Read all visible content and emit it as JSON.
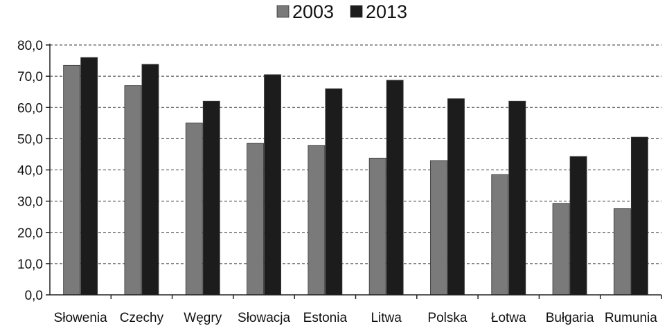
{
  "chart_data": {
    "type": "bar",
    "categories": [
      "Słowenia",
      "Czechy",
      "Węgry",
      "Słowacja",
      "Estonia",
      "Litwa",
      "Polska",
      "Łotwa",
      "Bułgaria",
      "Rumunia"
    ],
    "series": [
      {
        "name": "2003",
        "color": "#7a7a7a",
        "values": [
          73.5,
          67.0,
          55.0,
          48.5,
          47.8,
          43.8,
          43.0,
          38.5,
          29.3,
          27.6
        ]
      },
      {
        "name": "2013",
        "color": "#1c1c1c",
        "values": [
          76.0,
          73.8,
          62.0,
          70.5,
          66.0,
          68.7,
          62.8,
          62.0,
          44.3,
          50.5
        ]
      }
    ],
    "y_ticks": [
      "0,0",
      "10,0",
      "20,0",
      "30,0",
      "40,0",
      "50,0",
      "60,0",
      "70,0",
      "80,0"
    ],
    "ylim": [
      0,
      80
    ],
    "grid": true,
    "legend_position": "top-center",
    "title": "",
    "xlabel": "",
    "ylabel": ""
  }
}
